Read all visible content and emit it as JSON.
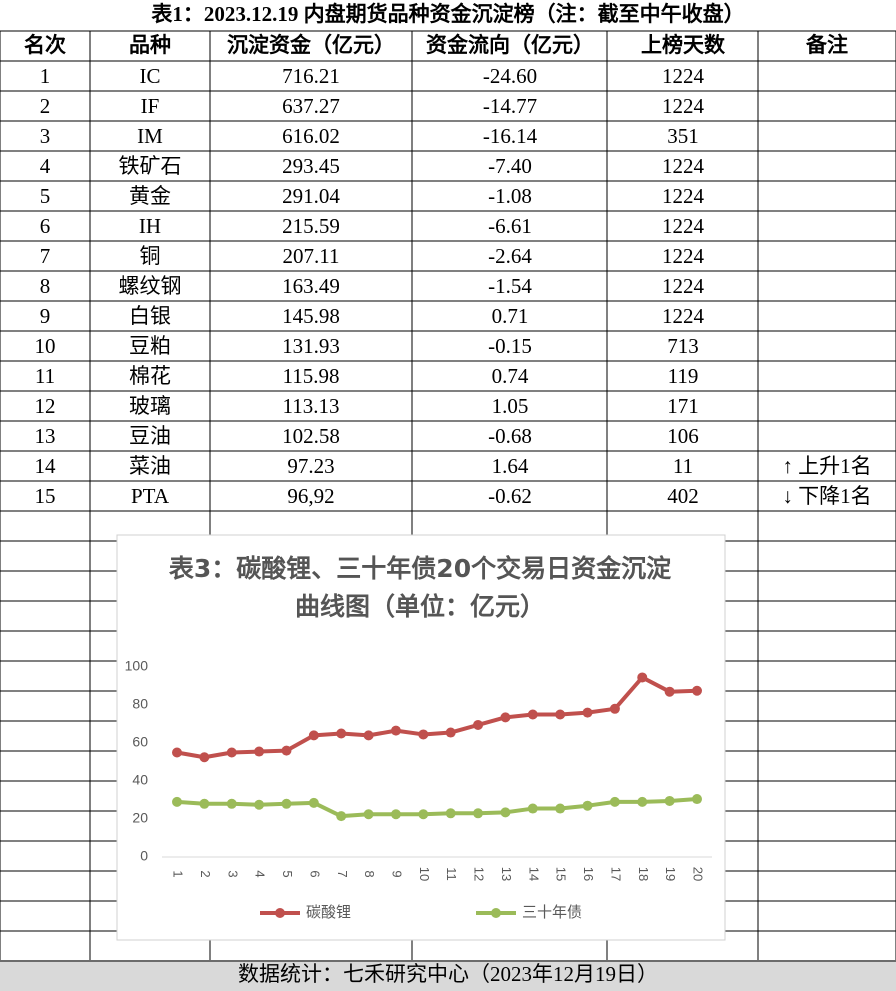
{
  "table": {
    "title": "表1：2023.12.19 内盘期货品种资金沉淀榜（注：截至中午收盘）",
    "headers": [
      "名次",
      "品种",
      "沉淀资金（亿元）",
      "资金流向（亿元）",
      "上榜天数",
      "备注"
    ],
    "rows": [
      [
        "1",
        "IC",
        "716.21",
        "-24.60",
        "1224"
      ],
      [
        "2",
        "IF",
        "637.27",
        "-14.77",
        "1224"
      ],
      [
        "3",
        "IM",
        "616.02",
        "-16.14",
        "351"
      ],
      [
        "4",
        "铁矿石",
        "293.45",
        "-7.40",
        "1224"
      ],
      [
        "5",
        "黄金",
        "291.04",
        "-1.08",
        "1224"
      ],
      [
        "6",
        "IH",
        "215.59",
        "-6.61",
        "1224"
      ],
      [
        "7",
        "铜",
        "207.11",
        "-2.64",
        "1224"
      ],
      [
        "8",
        "螺纹钢",
        "163.49",
        "-1.54",
        "1224"
      ],
      [
        "9",
        "白银",
        "145.98",
        "0.71",
        "1224"
      ],
      [
        "10",
        "豆粕",
        "131.93",
        "-0.15",
        "713"
      ],
      [
        "11",
        "棉花",
        "115.98",
        "0.74",
        "119"
      ],
      [
        "12",
        "玻璃",
        "113.13",
        "1.05",
        "171"
      ],
      [
        "13",
        "豆油",
        "102.58",
        "-0.68",
        "106"
      ],
      [
        "14",
        "菜油",
        "97.23",
        "1.64",
        "11",
        "↑ 上升1名"
      ],
      [
        "15",
        "PTA",
        "96,92",
        "-0.62",
        "402",
        "↓ 下降1名"
      ]
    ]
  },
  "footer": "数据统计：七禾研究中心（2023年12月19日）",
  "chart_data": {
    "type": "line",
    "title": "表3：碳酸锂、三十年债20个交易日资金沉淀曲线图（单位：亿元）",
    "categories": [
      "1",
      "2",
      "3",
      "4",
      "5",
      "6",
      "7",
      "8",
      "9",
      "10",
      "11",
      "12",
      "13",
      "14",
      "15",
      "16",
      "17",
      "18",
      "19",
      "20"
    ],
    "series": [
      {
        "name": "碳酸锂",
        "color": "#c0504d",
        "values": [
          55,
          52.5,
          55,
          55.5,
          56,
          64,
          65,
          64,
          66.5,
          64.5,
          65.5,
          69.5,
          73.5,
          75,
          75,
          76,
          78,
          94.5,
          87,
          87.5
        ]
      },
      {
        "name": "三十年债",
        "color": "#9bbb59",
        "values": [
          29,
          28,
          28,
          27.5,
          28,
          28.5,
          21.5,
          22.5,
          22.5,
          22.5,
          23,
          23,
          23.5,
          25.5,
          25.5,
          27,
          29,
          29,
          29.5,
          30.5
        ]
      }
    ],
    "ylim": [
      0,
      100
    ],
    "yticks": [
      0,
      20,
      40,
      60,
      80,
      100
    ],
    "grid": false,
    "legend": "bottom"
  }
}
